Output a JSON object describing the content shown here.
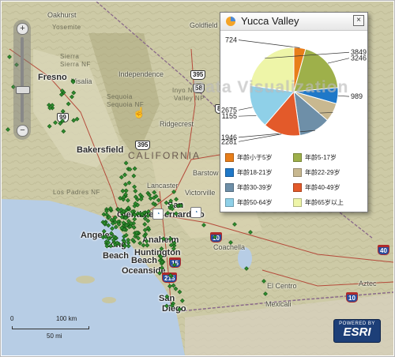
{
  "colors": {
    "land": "#c9c7a2",
    "mountain": "#a9a77a",
    "ocean": "#b7cde5",
    "marker": "#2e8b2e",
    "accent": "#1d3f78"
  },
  "map": {
    "places": [
      {
        "id": "oakhurst",
        "text": "Oakhurst"
      },
      {
        "id": "goldfield",
        "text": "Goldfield"
      },
      {
        "id": "yosemite",
        "text": "Yosemite"
      },
      {
        "id": "sierra",
        "text": "Sierra"
      },
      {
        "id": "independence",
        "text": "Independence"
      },
      {
        "id": "fresno",
        "text": "Fresno"
      },
      {
        "id": "visalia",
        "text": "Visalia"
      },
      {
        "id": "sequoia",
        "text": "Sequoia"
      },
      {
        "id": "bakersfield",
        "text": "Bakersfield"
      },
      {
        "id": "ridgecrest",
        "text": "Ridgecrest"
      },
      {
        "id": "barstow",
        "text": "Barstow"
      },
      {
        "id": "lancaster",
        "text": "Lancaster"
      },
      {
        "id": "victorville",
        "text": "Victorville"
      },
      {
        "id": "glendale",
        "text": "Glendale"
      },
      {
        "id": "sanbern1",
        "text": "San"
      },
      {
        "id": "sanbern2",
        "text": "Bernardino"
      },
      {
        "id": "angeles",
        "text": "Angeles"
      },
      {
        "id": "long",
        "text": "Long"
      },
      {
        "id": "beach",
        "text": "Beach"
      },
      {
        "id": "anaheim",
        "text": "Anaheim"
      },
      {
        "id": "huntington",
        "text": "Huntington"
      },
      {
        "id": "hbeach",
        "text": "Beach"
      },
      {
        "id": "oceanside",
        "text": "Oceanside"
      },
      {
        "id": "san",
        "text": "San"
      },
      {
        "id": "diego",
        "text": "Diego"
      },
      {
        "id": "coachella",
        "text": "Coachella"
      },
      {
        "id": "elcentro",
        "text": "El Centro"
      },
      {
        "id": "mexicali",
        "text": "Mexicali"
      },
      {
        "id": "aztec",
        "text": "Aztec"
      },
      {
        "id": "lasierra",
        "text": "Sierra NF"
      },
      {
        "id": "inyo",
        "text": "Inyo NF"
      },
      {
        "id": "sequoianf",
        "text": "Sequoia NF"
      },
      {
        "id": "ltpadres",
        "text": "Los Padres NF"
      },
      {
        "id": "valley",
        "text": "Valley NP"
      }
    ],
    "state_label": "CALIFORNIA",
    "shields": [
      "99",
      "395",
      "395",
      "58",
      "15",
      "215",
      "10",
      "40",
      "10",
      "8"
    ]
  },
  "zoom": {
    "in": "+",
    "out": "−"
  },
  "popup": {
    "title": "Yucca Valley",
    "close": "×",
    "watermark": "Data Visualization"
  },
  "chart_data": {
    "type": "pie",
    "title": "Yucca Valley",
    "slices": [
      {
        "label": "年龄5岁以下",
        "value": 724,
        "color": "#e87e1a"
      },
      {
        "label": "年龄5-17岁",
        "value": 3246,
        "color": "#9eb04a"
      },
      {
        "label": "年龄18-21岁",
        "value": 989,
        "color": "#1f78c8"
      },
      {
        "label": "年龄22-29岁",
        "value": 1155,
        "color": "#c8b890"
      },
      {
        "label": "年龄30-39岁",
        "value": 1946,
        "color": "#6e8fa8"
      },
      {
        "label": "年龄40-49岁",
        "value": 2281,
        "color": "#e35a2a"
      },
      {
        "label": "年龄50-64岁",
        "value": 2675,
        "color": "#8fd0e8"
      },
      {
        "label": "年龄65岁以上",
        "value": 3849,
        "color": "#eef5a8"
      }
    ],
    "legend_placement": "bottom"
  },
  "legend": [
    {
      "label": "年龄小于5岁",
      "color": "#e87e1a"
    },
    {
      "label": "年龄5-17岁",
      "color": "#9eb04a"
    },
    {
      "label": "年龄18-21岁",
      "color": "#1f78c8"
    },
    {
      "label": "年龄22-29岁",
      "color": "#c8b890"
    },
    {
      "label": "年龄30-39岁",
      "color": "#6e8fa8"
    },
    {
      "label": "年龄40-49岁",
      "color": "#e35a2a"
    },
    {
      "label": "年龄50-64岁",
      "color": "#8fd0e8"
    },
    {
      "label": "年龄65岁以上",
      "color": "#eef5a8"
    }
  ],
  "scale": {
    "km_zero": "0",
    "km": "100 km",
    "mi": "50 mi"
  },
  "esri": {
    "small": "POWERED BY",
    "big": "ESRI"
  }
}
